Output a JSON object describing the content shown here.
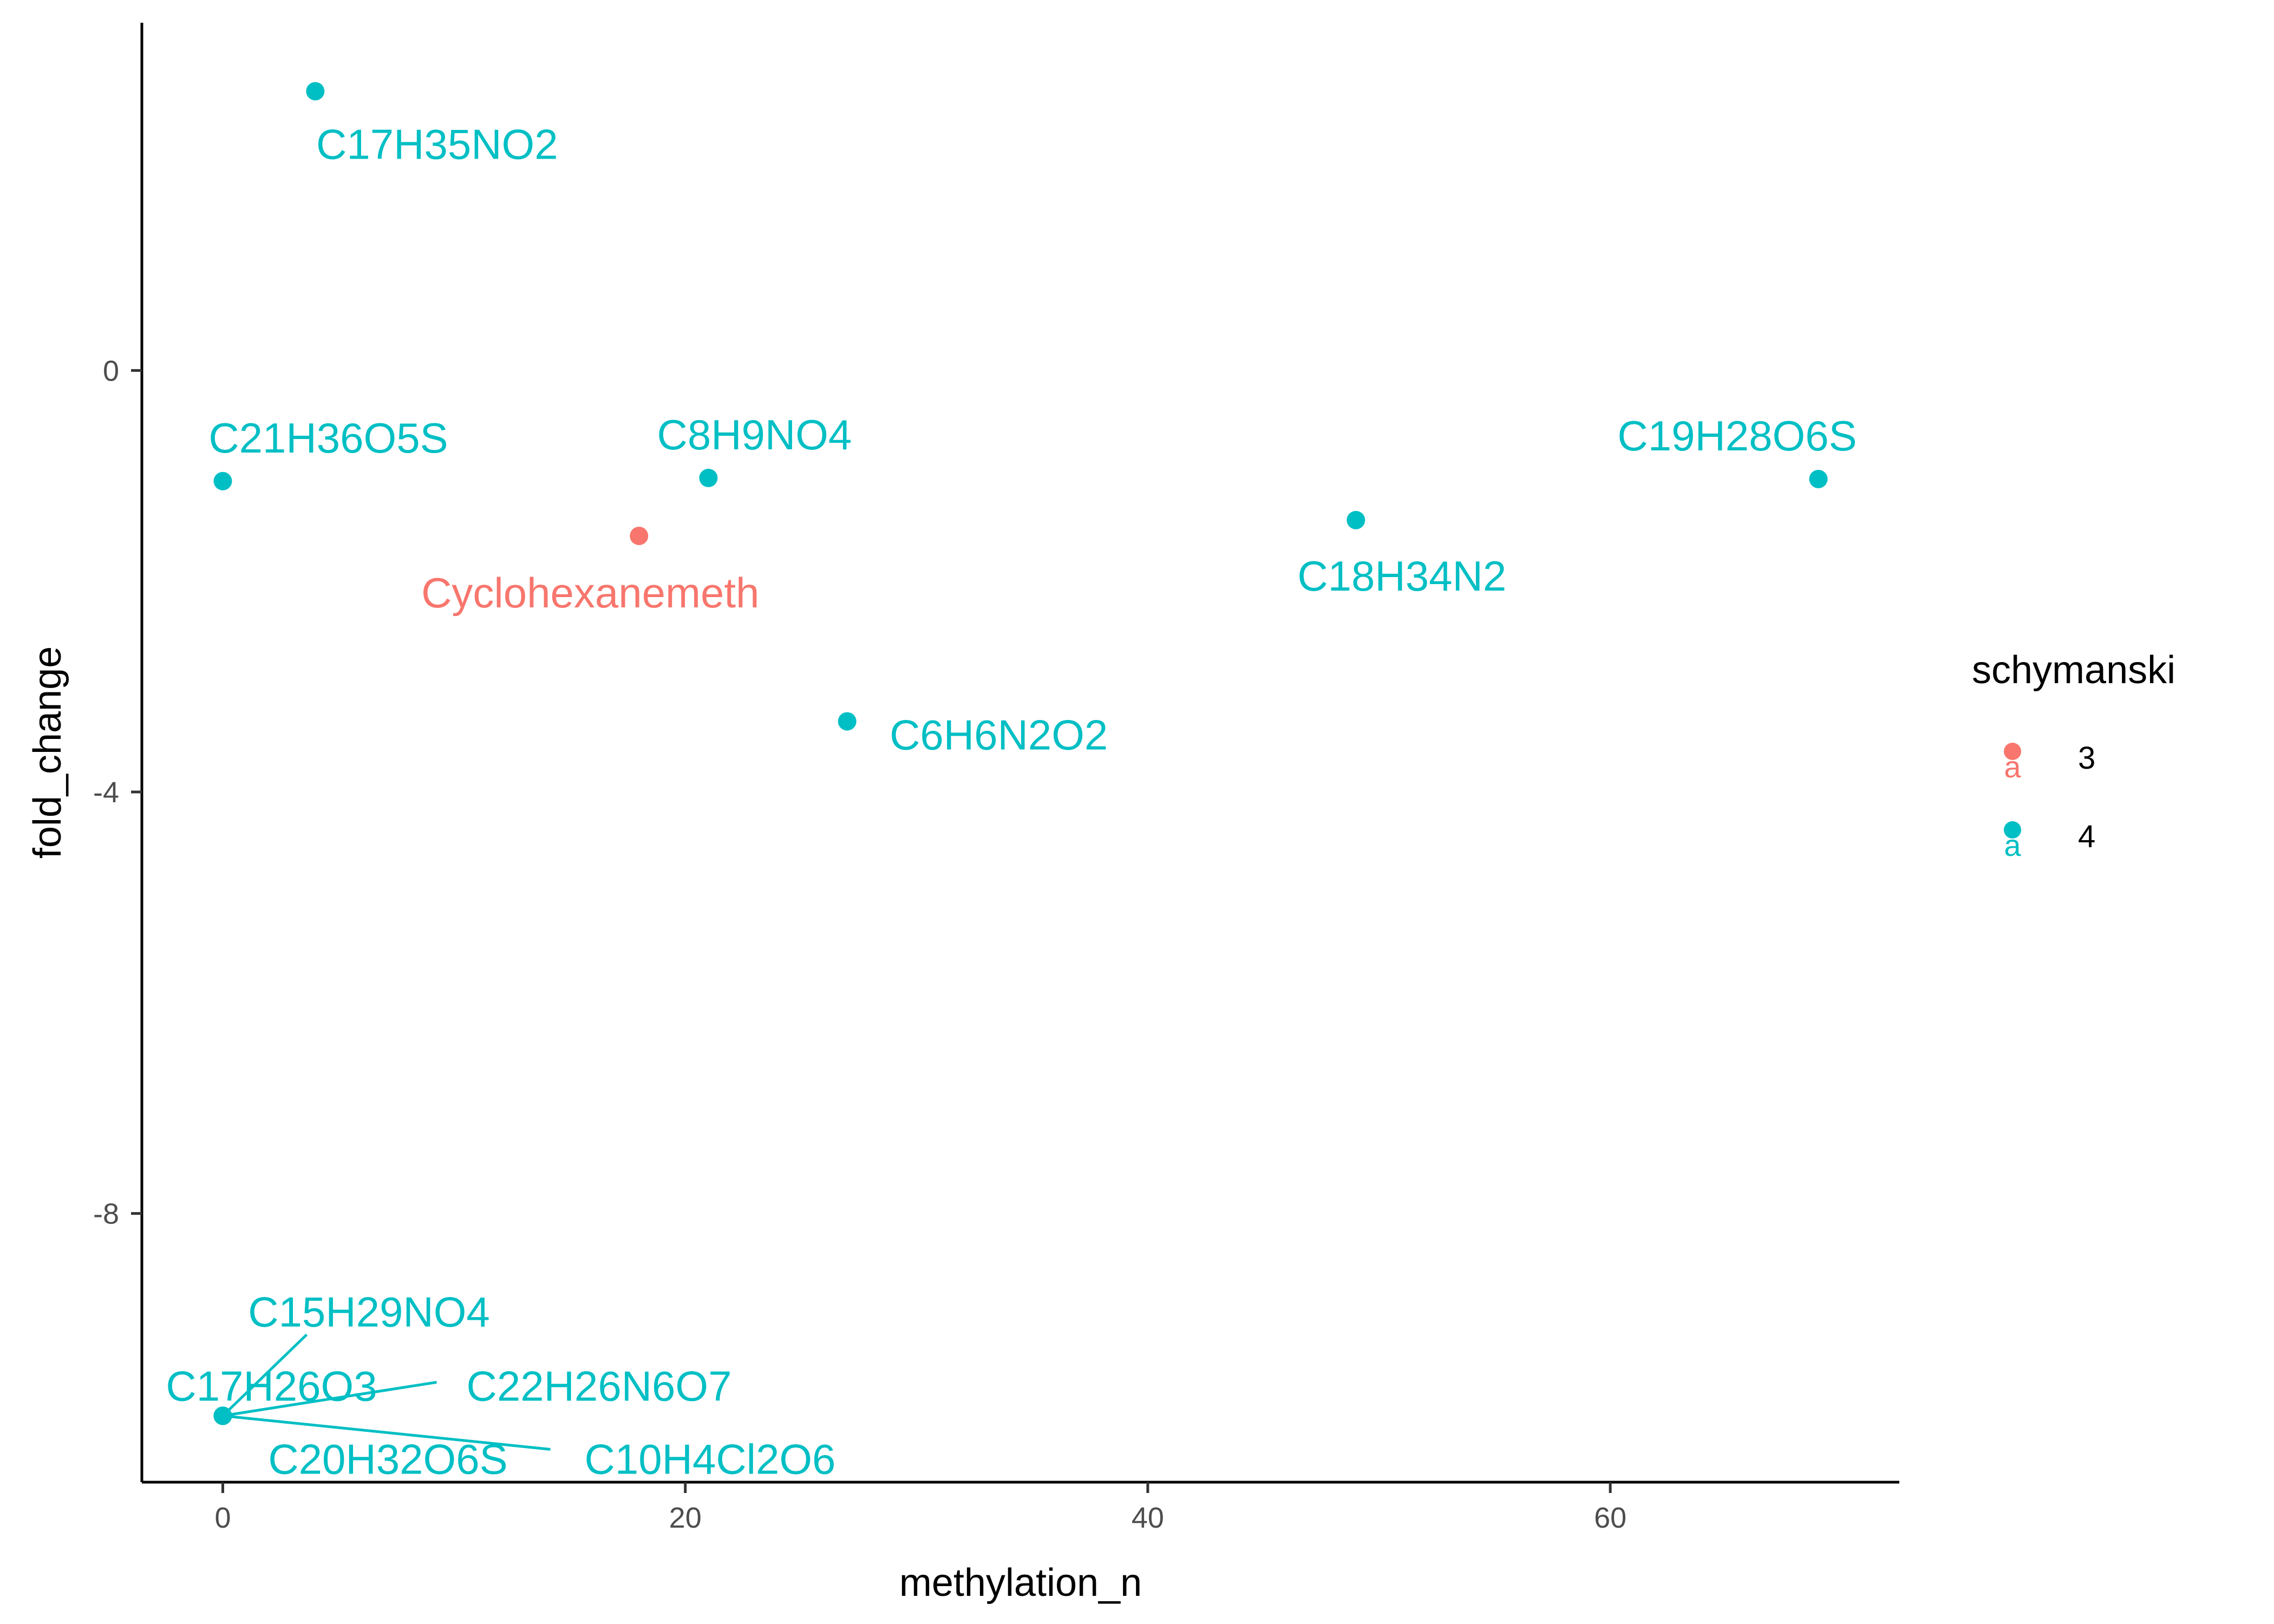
{
  "chart_data": {
    "type": "scatter",
    "xlabel": "methylation_n",
    "ylabel": "fold_change",
    "xlim": [
      -3.5,
      72.5
    ],
    "ylim": [
      -10.55,
      3.3
    ],
    "x_ticks": [
      0,
      20,
      40,
      60
    ],
    "y_ticks": [
      0,
      -4,
      -8
    ],
    "grid": false,
    "legend": {
      "title": "schymanski",
      "position": "right",
      "entries": [
        {
          "label": "3",
          "color": "#F8766D"
        },
        {
          "label": "4",
          "color": "#00BFC4"
        }
      ]
    },
    "points": [
      {
        "x": 4,
        "y": 2.65,
        "label": "C17H35NO2",
        "group": "4"
      },
      {
        "x": 0,
        "y": -1.05,
        "label": "C21H36O5S",
        "group": "4"
      },
      {
        "x": 21,
        "y": -1.02,
        "label": "C8H9NO4",
        "group": "4"
      },
      {
        "x": 18,
        "y": -1.57,
        "label": "Cyclohexanemeth",
        "group": "3"
      },
      {
        "x": 49,
        "y": -1.42,
        "label": "C18H34N2",
        "group": "4"
      },
      {
        "x": 69,
        "y": -1.03,
        "label": "C19H28O6S",
        "group": "4"
      },
      {
        "x": 27,
        "y": -3.33,
        "label": "C6H6N2O2",
        "group": "4"
      },
      {
        "x": 0,
        "y": -9.92,
        "label": "C15H29NO4",
        "group": "4"
      },
      {
        "x": 0,
        "y": -9.92,
        "label": "C17H26O3",
        "group": "4"
      },
      {
        "x": 0,
        "y": -9.92,
        "label": "C22H26N6O7",
        "group": "4"
      },
      {
        "x": 0,
        "y": -9.92,
        "label": "C20H32O6S",
        "group": "4"
      },
      {
        "x": 0,
        "y": -9.92,
        "label": "C10H4Cl2O6",
        "group": "4"
      }
    ]
  }
}
